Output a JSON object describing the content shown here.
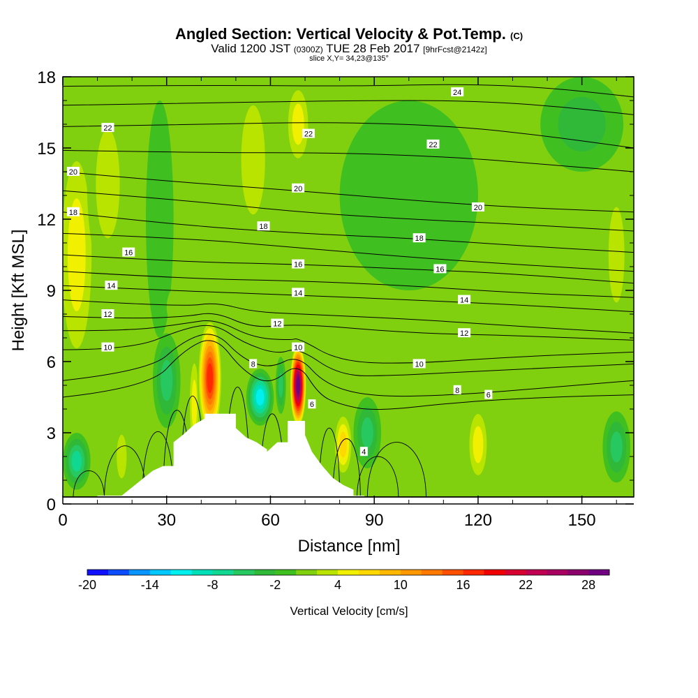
{
  "header": {
    "title_main": "Angled Section: Vertical Velocity & Pot.Temp.",
    "title_mark": "(C)",
    "valid_prefix": "Valid 1200 JST",
    "valid_zulu": "(0300Z)",
    "valid_date": "TUE 28 Feb 2017",
    "valid_fcst": "[9hrFcst@2142z]",
    "slice": "slice X,Y= 34,23@135°"
  },
  "chart_data": {
    "type": "heatmap",
    "xlabel": "Distance [nm]",
    "ylabel": "Height [Kft MSL]",
    "xlim": [
      0,
      165
    ],
    "ylim": [
      0,
      18
    ],
    "x_ticks": [
      0,
      30,
      60,
      90,
      120,
      150
    ],
    "y_ticks": [
      0,
      3,
      6,
      9,
      12,
      15,
      18
    ],
    "colorbar": {
      "label": "Vertical Velocity [cm/s]",
      "tick_labels": [
        "-20",
        "-14",
        "-8",
        "-2",
        "4",
        "10",
        "16",
        "22",
        "28"
      ],
      "levels": [
        -20,
        -18,
        -16,
        -14,
        -12,
        -10,
        -8,
        -6,
        -4,
        -2,
        0,
        2,
        4,
        6,
        8,
        10,
        12,
        14,
        16,
        18,
        20,
        22,
        24,
        26,
        28,
        30
      ],
      "colors": [
        "#1010ff",
        "#0c4cff",
        "#0894ff",
        "#00c8ff",
        "#00f0f0",
        "#00e0b8",
        "#10d890",
        "#28c860",
        "#30b838",
        "#40c020",
        "#80d010",
        "#b8e400",
        "#f0f000",
        "#ffd800",
        "#ffb800",
        "#ff9800",
        "#ff7800",
        "#ff5000",
        "#ff2800",
        "#f00000",
        "#d80030",
        "#c00050",
        "#a80060",
        "#8c006c",
        "#700080"
      ]
    },
    "velocity_field": {
      "background_cm_s": 0,
      "blobs": [
        {
          "x": 4,
          "y": 10.5,
          "rx": 6,
          "ry": 5.5,
          "value": 5
        },
        {
          "x": 13,
          "y": 13.5,
          "rx": 6,
          "ry": 4,
          "value": 3
        },
        {
          "x": 28,
          "y": 12,
          "rx": 4,
          "ry": 5,
          "value": -2
        },
        {
          "x": 55,
          "y": 14.5,
          "rx": 6,
          "ry": 4,
          "value": 4
        },
        {
          "x": 68,
          "y": 16,
          "rx": 4,
          "ry": 2,
          "value": 5
        },
        {
          "x": 45,
          "y": 8.3,
          "rx": 15,
          "ry": 1.8,
          "value": 1
        },
        {
          "x": 100,
          "y": 13,
          "rx": 20,
          "ry": 4,
          "value": -2
        },
        {
          "x": 150,
          "y": 16,
          "rx": 12,
          "ry": 2,
          "value": -3
        },
        {
          "x": 160,
          "y": 10.5,
          "rx": 4,
          "ry": 3.5,
          "value": 3
        },
        {
          "x": 4,
          "y": 1.8,
          "rx": 4,
          "ry": 1.2,
          "value": -7
        },
        {
          "x": 17,
          "y": 2,
          "rx": 2.5,
          "ry": 1.6,
          "value": 3
        },
        {
          "x": 30,
          "y": 5.2,
          "rx": 4,
          "ry": 2,
          "value": -5
        },
        {
          "x": 38,
          "y": 4.2,
          "rx": 1.8,
          "ry": 2.4,
          "value": 6
        },
        {
          "x": 42.5,
          "y": 5.3,
          "rx": 3.6,
          "ry": 2.6,
          "value": 18
        },
        {
          "x": 57,
          "y": 4.5,
          "rx": 4,
          "ry": 1.2,
          "value": -11
        },
        {
          "x": 68,
          "y": 5,
          "rx": 2.4,
          "ry": 1.8,
          "value": 30
        },
        {
          "x": 63,
          "y": 5,
          "rx": 1.5,
          "ry": 1.2,
          "value": -6
        },
        {
          "x": 81,
          "y": 2.5,
          "rx": 3,
          "ry": 1.5,
          "value": 8
        },
        {
          "x": 88,
          "y": 3,
          "rx": 4,
          "ry": 1.5,
          "value": -5
        },
        {
          "x": 120,
          "y": 2.5,
          "rx": 3.5,
          "ry": 1.8,
          "value": 5
        },
        {
          "x": 160,
          "y": 2.4,
          "rx": 4,
          "ry": 1.5,
          "value": -6
        }
      ]
    },
    "terrain_kft": {
      "x": [
        0,
        10,
        10,
        17,
        20,
        23,
        26,
        29,
        32,
        32,
        35,
        38,
        41,
        41,
        44,
        47,
        50,
        50,
        53,
        56,
        59,
        59,
        62,
        65,
        65,
        70,
        70,
        72,
        75,
        78,
        81,
        84,
        84,
        87,
        90,
        165
      ],
      "y": [
        0,
        0,
        0.35,
        0.35,
        0.7,
        1.05,
        1.4,
        1.6,
        1.6,
        2.6,
        2.95,
        3.35,
        3.6,
        3.8,
        3.8,
        3.8,
        3.8,
        3.2,
        2.8,
        2.6,
        2.3,
        2.2,
        2.6,
        2.6,
        3.5,
        3.5,
        2.9,
        2.2,
        1.6,
        1.1,
        0.8,
        0.6,
        0.35,
        0.35,
        0,
        0
      ]
    },
    "theta_isolines": [
      {
        "value": "24",
        "points": [
          [
            0,
            17.6
          ],
          [
            40,
            17.65
          ],
          [
            85,
            17.6
          ],
          [
            115,
            17.7
          ],
          [
            140,
            17.55
          ],
          [
            165,
            17.15
          ]
        ]
      },
      {
        "value": "23",
        "points": [
          [
            0,
            16.8
          ],
          [
            40,
            16.9
          ],
          [
            85,
            17.0
          ],
          [
            115,
            17.0
          ],
          [
            140,
            16.8
          ],
          [
            165,
            16.4
          ]
        ]
      },
      {
        "value": "22",
        "points": [
          [
            0,
            15.9
          ],
          [
            40,
            16.0
          ],
          [
            80,
            16.1
          ],
          [
            115,
            15.9
          ],
          [
            140,
            15.5
          ],
          [
            165,
            15.0
          ]
        ]
      },
      {
        "value": "21",
        "points": [
          [
            0,
            14.9
          ],
          [
            40,
            14.8
          ],
          [
            80,
            14.8
          ],
          [
            115,
            14.6
          ],
          [
            140,
            14.3
          ],
          [
            165,
            14.0
          ]
        ]
      },
      {
        "value": "20",
        "points": [
          [
            0,
            14.0
          ],
          [
            30,
            13.6
          ],
          [
            68,
            13.2
          ],
          [
            100,
            12.8
          ],
          [
            130,
            12.5
          ],
          [
            165,
            12.3
          ]
        ]
      },
      {
        "value": "19",
        "points": [
          [
            0,
            13.2
          ],
          [
            35,
            12.8
          ],
          [
            68,
            12.3
          ],
          [
            100,
            12.0
          ],
          [
            130,
            11.8
          ],
          [
            165,
            11.5
          ]
        ]
      },
      {
        "value": "18",
        "points": [
          [
            0,
            12.3
          ],
          [
            30,
            11.8
          ],
          [
            68,
            11.4
          ],
          [
            100,
            11.2
          ],
          [
            130,
            10.9
          ],
          [
            165,
            10.6
          ]
        ]
      },
      {
        "value": "17",
        "points": [
          [
            0,
            11.4
          ],
          [
            35,
            11.2
          ],
          [
            68,
            10.8
          ],
          [
            100,
            10.4
          ],
          [
            130,
            10.1
          ],
          [
            165,
            9.8
          ]
        ]
      },
      {
        "value": "16",
        "points": [
          [
            0,
            10.5
          ],
          [
            35,
            10.2
          ],
          [
            68,
            10.1
          ],
          [
            100,
            9.9
          ],
          [
            130,
            9.7
          ],
          [
            165,
            9.3
          ]
        ]
      },
      {
        "value": "15",
        "points": [
          [
            0,
            9.8
          ],
          [
            35,
            9.5
          ],
          [
            68,
            9.4
          ],
          [
            100,
            9.2
          ],
          [
            130,
            8.9
          ],
          [
            165,
            8.7
          ]
        ]
      },
      {
        "value": "14",
        "points": [
          [
            0,
            9.2
          ],
          [
            30,
            9.0
          ],
          [
            68,
            8.8
          ],
          [
            100,
            8.6
          ],
          [
            130,
            8.4
          ],
          [
            165,
            8.1
          ]
        ]
      },
      {
        "value": "13",
        "points": [
          [
            0,
            8.6
          ],
          [
            35,
            8.3
          ],
          [
            44,
            8.5
          ],
          [
            55,
            8.1
          ],
          [
            68,
            8.0
          ],
          [
            100,
            7.8
          ],
          [
            130,
            7.5
          ],
          [
            165,
            7.2
          ]
        ]
      },
      {
        "value": "12",
        "points": [
          [
            0,
            7.9
          ],
          [
            20,
            7.8
          ],
          [
            36,
            7.9
          ],
          [
            44,
            8.1
          ],
          [
            55,
            7.4
          ],
          [
            68,
            7.6
          ],
          [
            100,
            7.2
          ],
          [
            130,
            7.1
          ],
          [
            165,
            6.9
          ]
        ]
      },
      {
        "value": "11",
        "points": [
          [
            0,
            7.3
          ],
          [
            20,
            7.3
          ],
          [
            35,
            7.6
          ],
          [
            44,
            7.8
          ],
          [
            55,
            7.0
          ],
          [
            66,
            6.9
          ],
          [
            68,
            7.0
          ],
          [
            80,
            6.0
          ],
          [
            100,
            5.9
          ],
          [
            130,
            6.2
          ],
          [
            165,
            6.4
          ]
        ]
      },
      {
        "value": "10",
        "points": [
          [
            0,
            6.5
          ],
          [
            20,
            6.5
          ],
          [
            35,
            7.4
          ],
          [
            44,
            7.6
          ],
          [
            52,
            6.8
          ],
          [
            62,
            6.3
          ],
          [
            68,
            6.6
          ],
          [
            80,
            5.4
          ],
          [
            95,
            5.4
          ],
          [
            120,
            5.6
          ],
          [
            165,
            5.9
          ]
        ]
      },
      {
        "value": "8",
        "points": [
          [
            0,
            5.2
          ],
          [
            25,
            5.6
          ],
          [
            35,
            6.9
          ],
          [
            44,
            7.3
          ],
          [
            52,
            6.1
          ],
          [
            60,
            5.7
          ],
          [
            68,
            6.3
          ],
          [
            76,
            5.0
          ],
          [
            90,
            4.5
          ],
          [
            115,
            4.6
          ],
          [
            140,
            4.9
          ],
          [
            165,
            5.2
          ]
        ]
      },
      {
        "value": "6",
        "points": [
          [
            0,
            4.5
          ],
          [
            25,
            4.9
          ],
          [
            35,
            6.5
          ],
          [
            44,
            7.1
          ],
          [
            52,
            5.6
          ],
          [
            60,
            5.0
          ],
          [
            68,
            6.0
          ],
          [
            74,
            4.6
          ],
          [
            80,
            4.2
          ],
          [
            90,
            3.9
          ],
          [
            115,
            4.3
          ],
          [
            140,
            4.5
          ],
          [
            165,
            4.6
          ]
        ]
      }
    ],
    "theta_labels": [
      {
        "text": "24",
        "x": 114,
        "y": 17.35
      },
      {
        "text": "22",
        "x": 13,
        "y": 15.85
      },
      {
        "text": "22",
        "x": 71,
        "y": 15.6
      },
      {
        "text": "22",
        "x": 107,
        "y": 15.15
      },
      {
        "text": "20",
        "x": 3,
        "y": 14.0
      },
      {
        "text": "20",
        "x": 68,
        "y": 13.3
      },
      {
        "text": "20",
        "x": 120,
        "y": 12.5
      },
      {
        "text": "18",
        "x": 3,
        "y": 12.3
      },
      {
        "text": "18",
        "x": 58,
        "y": 11.7
      },
      {
        "text": "18",
        "x": 103,
        "y": 11.2
      },
      {
        "text": "16",
        "x": 19,
        "y": 10.6
      },
      {
        "text": "16",
        "x": 68,
        "y": 10.1
      },
      {
        "text": "16",
        "x": 109,
        "y": 9.9
      },
      {
        "text": "14",
        "x": 14,
        "y": 9.2
      },
      {
        "text": "14",
        "x": 68,
        "y": 8.9
      },
      {
        "text": "14",
        "x": 116,
        "y": 8.6
      },
      {
        "text": "12",
        "x": 13,
        "y": 8.0
      },
      {
        "text": "12",
        "x": 62,
        "y": 7.6
      },
      {
        "text": "12",
        "x": 116,
        "y": 7.2
      },
      {
        "text": "10",
        "x": 13,
        "y": 6.6
      },
      {
        "text": "10",
        "x": 68,
        "y": 6.6
      },
      {
        "text": "10",
        "x": 103,
        "y": 5.9
      },
      {
        "text": "8",
        "x": 55,
        "y": 5.9
      },
      {
        "text": "8",
        "x": 114,
        "y": 4.8
      },
      {
        "text": "6",
        "x": 72,
        "y": 4.2
      },
      {
        "text": "6",
        "x": 123,
        "y": 4.6
      },
      {
        "text": "4",
        "x": 87,
        "y": 2.2
      }
    ],
    "low_level_contour_arches": [
      {
        "x0": 3,
        "x1": 12,
        "top": 1.8
      },
      {
        "x0": 12,
        "x1": 24,
        "top": 3.2
      },
      {
        "x0": 23,
        "x1": 32,
        "top": 4.0
      },
      {
        "x0": 29,
        "x1": 37,
        "top": 5.2
      },
      {
        "x0": 34,
        "x1": 41,
        "top": 6.0
      },
      {
        "x0": 47,
        "x1": 54,
        "top": 6.5
      },
      {
        "x0": 57,
        "x1": 64,
        "top": 5.0
      },
      {
        "x0": 74,
        "x1": 80,
        "top": 4.2
      },
      {
        "x0": 78,
        "x1": 86,
        "top": 3.6
      },
      {
        "x0": 85,
        "x1": 97,
        "top": 2.6
      },
      {
        "x0": 88,
        "x1": 105,
        "top": 3.4
      }
    ]
  }
}
